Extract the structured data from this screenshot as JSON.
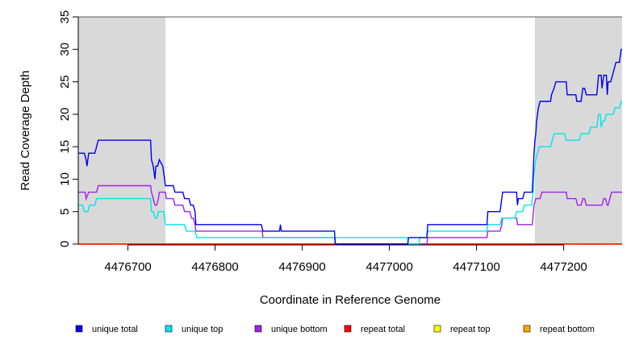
{
  "chart_data": {
    "type": "line",
    "title": "",
    "xlabel": "Coordinate in Reference Genome",
    "ylabel": "Read Coverage Depth",
    "xlim": [
      4476643,
      4477267
    ],
    "ylim": [
      0,
      35
    ],
    "x_ticks": [
      4476700,
      4476800,
      4476900,
      4477000,
      4477100,
      4477200
    ],
    "y_ticks": [
      0,
      5,
      10,
      15,
      20,
      25,
      30,
      35
    ],
    "shaded_regions": [
      {
        "x_start": 4476643,
        "x_end": 4476743
      },
      {
        "x_start": 4477167,
        "x_end": 4477267
      }
    ],
    "series": [
      {
        "name": "unique total",
        "color": "#0000ee",
        "points": [
          [
            4476643,
            14
          ],
          [
            4476650,
            14
          ],
          [
            4476652,
            13
          ],
          [
            4476653,
            12
          ],
          [
            4476655,
            14
          ],
          [
            4476662,
            14
          ],
          [
            4476664,
            15
          ],
          [
            4476666,
            16
          ],
          [
            4476726,
            16
          ],
          [
            4476727,
            13
          ],
          [
            4476729,
            12
          ],
          [
            4476730,
            11
          ],
          [
            4476731,
            10
          ],
          [
            4476732,
            12
          ],
          [
            4476734,
            12
          ],
          [
            4476736,
            13
          ],
          [
            4476740,
            12
          ],
          [
            4476741,
            11
          ],
          [
            4476743,
            9
          ],
          [
            4476752,
            9
          ],
          [
            4476754,
            8
          ],
          [
            4476763,
            8
          ],
          [
            4476765,
            7
          ],
          [
            4476770,
            7
          ],
          [
            4476772,
            6
          ],
          [
            4476775,
            6
          ],
          [
            4476777,
            5
          ],
          [
            4476778,
            3
          ],
          [
            4476853,
            3
          ],
          [
            4476855,
            2
          ],
          [
            4476874,
            2
          ],
          [
            4476875,
            3
          ],
          [
            4476876,
            2
          ],
          [
            4476937,
            2
          ],
          [
            4476938,
            0
          ],
          [
            4477021,
            0
          ],
          [
            4477022,
            1
          ],
          [
            4477043,
            1
          ],
          [
            4477044,
            3
          ],
          [
            4477112,
            3
          ],
          [
            4477113,
            5
          ],
          [
            4477127,
            5
          ],
          [
            4477129,
            7
          ],
          [
            4477130,
            8
          ],
          [
            4477146,
            8
          ],
          [
            4477147,
            6
          ],
          [
            4477148,
            7
          ],
          [
            4477153,
            7
          ],
          [
            4477155,
            8
          ],
          [
            4477164,
            8
          ],
          [
            4477166,
            14
          ],
          [
            4477167,
            16
          ],
          [
            4477168,
            17
          ],
          [
            4477169,
            19
          ],
          [
            4477171,
            21
          ],
          [
            4477173,
            22
          ],
          [
            4477185,
            22
          ],
          [
            4477186,
            23
          ],
          [
            4477189,
            24
          ],
          [
            4477191,
            25
          ],
          [
            4477203,
            25
          ],
          [
            4477204,
            23
          ],
          [
            4477214,
            23
          ],
          [
            4477215,
            22
          ],
          [
            4477220,
            22
          ],
          [
            4477222,
            24
          ],
          [
            4477224,
            24
          ],
          [
            4477226,
            23
          ],
          [
            4477238,
            23
          ],
          [
            4477240,
            26
          ],
          [
            4477243,
            26
          ],
          [
            4477244,
            24
          ],
          [
            4477246,
            26
          ],
          [
            4477249,
            26
          ],
          [
            4477250,
            23
          ],
          [
            4477251,
            25
          ],
          [
            4477254,
            25
          ],
          [
            4477256,
            26
          ],
          [
            4477258,
            27
          ],
          [
            4477260,
            28
          ],
          [
            4477264,
            28
          ],
          [
            4477265,
            29
          ],
          [
            4477266,
            30
          ],
          [
            4477267,
            30
          ]
        ]
      },
      {
        "name": "unique top",
        "color": "#00e5ee",
        "points": [
          [
            4476643,
            6
          ],
          [
            4476648,
            6
          ],
          [
            4476650,
            5
          ],
          [
            4476654,
            5
          ],
          [
            4476656,
            6
          ],
          [
            4476662,
            6
          ],
          [
            4476664,
            7
          ],
          [
            4476726,
            7
          ],
          [
            4476727,
            5
          ],
          [
            4476729,
            5
          ],
          [
            4476731,
            4
          ],
          [
            4476733,
            4
          ],
          [
            4476735,
            5
          ],
          [
            4476741,
            5
          ],
          [
            4476743,
            3
          ],
          [
            4476765,
            3
          ],
          [
            4476767,
            2
          ],
          [
            4476777,
            2
          ],
          [
            4476779,
            1
          ],
          [
            4477021,
            1
          ],
          [
            4477022,
            0
          ],
          [
            4477034,
            0
          ],
          [
            4477035,
            1
          ],
          [
            4477043,
            1
          ],
          [
            4477044,
            2
          ],
          [
            4477112,
            2
          ],
          [
            4477113,
            3
          ],
          [
            4477127,
            3
          ],
          [
            4477129,
            4
          ],
          [
            4477144,
            4
          ],
          [
            4477146,
            5
          ],
          [
            4477153,
            5
          ],
          [
            4477155,
            6
          ],
          [
            4477163,
            6
          ],
          [
            4477165,
            8
          ],
          [
            4477166,
            11
          ],
          [
            4477168,
            13
          ],
          [
            4477170,
            14
          ],
          [
            4477172,
            15
          ],
          [
            4477185,
            15
          ],
          [
            4477187,
            16
          ],
          [
            4477189,
            17
          ],
          [
            4477201,
            17
          ],
          [
            4477203,
            16
          ],
          [
            4477218,
            16
          ],
          [
            4477220,
            17
          ],
          [
            4477229,
            17
          ],
          [
            4477231,
            18
          ],
          [
            4477238,
            18
          ],
          [
            4477240,
            20
          ],
          [
            4477242,
            20
          ],
          [
            4477243,
            18
          ],
          [
            4477245,
            19
          ],
          [
            4477247,
            19
          ],
          [
            4477249,
            20
          ],
          [
            4477257,
            20
          ],
          [
            4477259,
            21
          ],
          [
            4477264,
            21
          ],
          [
            4477266,
            22
          ],
          [
            4477267,
            22
          ]
        ]
      },
      {
        "name": "unique bottom",
        "color": "#a020f0",
        "points": [
          [
            4476643,
            8
          ],
          [
            4476651,
            8
          ],
          [
            4476652,
            7
          ],
          [
            4476655,
            8
          ],
          [
            4476664,
            8
          ],
          [
            4476666,
            9
          ],
          [
            4476726,
            9
          ],
          [
            4476727,
            8
          ],
          [
            4476729,
            7
          ],
          [
            4476731,
            6
          ],
          [
            4476733,
            6
          ],
          [
            4476735,
            7
          ],
          [
            4476736,
            8
          ],
          [
            4476743,
            8
          ],
          [
            4476744,
            7
          ],
          [
            4476752,
            7
          ],
          [
            4476754,
            6
          ],
          [
            4476763,
            6
          ],
          [
            4476765,
            5
          ],
          [
            4476771,
            5
          ],
          [
            4476773,
            4
          ],
          [
            4476775,
            4
          ],
          [
            4476777,
            3
          ],
          [
            4476778,
            2
          ],
          [
            4476854,
            2
          ],
          [
            4476855,
            1
          ],
          [
            4476937,
            1
          ],
          [
            4476938,
            0
          ],
          [
            4477043,
            0
          ],
          [
            4477044,
            1
          ],
          [
            4477112,
            1
          ],
          [
            4477113,
            2
          ],
          [
            4477127,
            2
          ],
          [
            4477129,
            3
          ],
          [
            4477130,
            4
          ],
          [
            4477146,
            4
          ],
          [
            4477147,
            3
          ],
          [
            4477164,
            3
          ],
          [
            4477166,
            6
          ],
          [
            4477168,
            7
          ],
          [
            4477173,
            7
          ],
          [
            4477175,
            8
          ],
          [
            4477203,
            8
          ],
          [
            4477204,
            7
          ],
          [
            4477214,
            7
          ],
          [
            4477216,
            6
          ],
          [
            4477220,
            6
          ],
          [
            4477222,
            7
          ],
          [
            4477224,
            7
          ],
          [
            4477226,
            6
          ],
          [
            4477244,
            6
          ],
          [
            4477246,
            7
          ],
          [
            4477248,
            7
          ],
          [
            4477250,
            6
          ],
          [
            4477251,
            6
          ],
          [
            4477253,
            7
          ],
          [
            4477255,
            8
          ],
          [
            4477267,
            8
          ]
        ]
      },
      {
        "name": "repeat total",
        "color": "#ff0000",
        "points": [
          [
            4476643,
            0
          ],
          [
            4477267,
            0
          ]
        ]
      },
      {
        "name": "repeat top",
        "color": "#ffff00",
        "points": [
          [
            4476643,
            0
          ],
          [
            4477267,
            0
          ]
        ]
      },
      {
        "name": "repeat bottom",
        "color": "#ffa500",
        "points": [
          [
            4476643,
            0
          ],
          [
            4477267,
            0
          ]
        ]
      }
    ],
    "legend_position": "bottom"
  }
}
